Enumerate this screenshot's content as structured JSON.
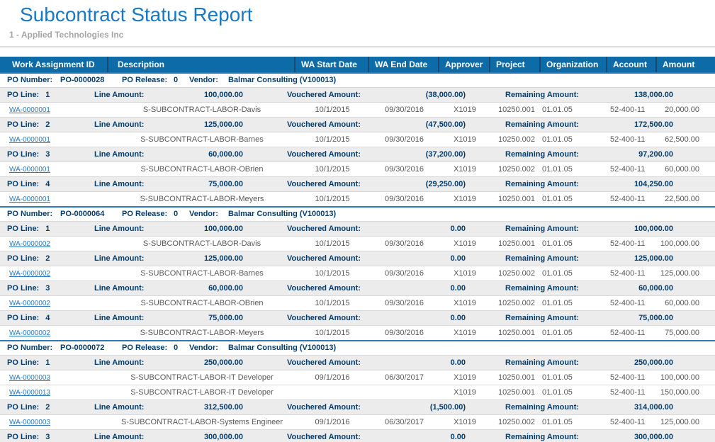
{
  "report": {
    "title": "Subcontract Status Report",
    "subtitle": "1 - Applied Technologies Inc"
  },
  "colors": {
    "title_blue": "#1b78c2",
    "header_bg": "#0d6ba8",
    "header_divider": "#17496f",
    "navy_text": "#043d6d",
    "detail_gray": "#58585a",
    "link_blue": "#2b79b9",
    "alt_row_bg": "#ececec",
    "section_border_blue": "#2d7ab8"
  },
  "table": {
    "columns": [
      "Work Assignment ID",
      "Description",
      "WA Start Date",
      "WA End Date",
      "Approver",
      "Project",
      "Organization",
      "Account",
      "Amount"
    ],
    "labels": {
      "po_number": "PO Number:",
      "po_release": "PO Release:",
      "vendor": "Vendor:",
      "po_line": "PO Line:",
      "line_amount": "Line Amount:",
      "vouchered_amount": "Vouchered Amount:",
      "remaining_amount": "Remaining Amount:"
    },
    "sections": [
      {
        "po_number": "PO-0000028",
        "po_release": "0",
        "vendor": "Balmar Consulting (V100013)",
        "lines": [
          {
            "line_no": "1",
            "line_amount": "100,000.00",
            "vouchered": "(38,000.00)",
            "remaining": "138,000.00",
            "assignments": [
              {
                "wa_id": "WA-0000001",
                "description": "S-SUBCONTRACT-LABOR-Davis",
                "start": "10/1/2015",
                "end": "09/30/2016",
                "approver": "X1019",
                "project": "10250.001",
                "organization": "01.01.05",
                "account": "52-400-11",
                "amount": "20,000.00"
              }
            ]
          },
          {
            "line_no": "2",
            "line_amount": "125,000.00",
            "vouchered": "(47,500.00)",
            "remaining": "172,500.00",
            "assignments": [
              {
                "wa_id": "WA-0000001",
                "description": "S-SUBCONTRACT-LABOR-Barnes",
                "start": "10/1/2015",
                "end": "09/30/2016",
                "approver": "X1019",
                "project": "10250.002",
                "organization": "01.01.05",
                "account": "52-400-11",
                "amount": "62,500.00"
              }
            ]
          },
          {
            "line_no": "3",
            "line_amount": "60,000.00",
            "vouchered": "(37,200.00)",
            "remaining": "97,200.00",
            "assignments": [
              {
                "wa_id": "WA-0000001",
                "description": "S-SUBCONTRACT-LABOR-OBrien",
                "start": "10/1/2015",
                "end": "09/30/2016",
                "approver": "X1019",
                "project": "10250.002",
                "organization": "01.01.05",
                "account": "52-400-11",
                "amount": "60,000.00"
              }
            ]
          },
          {
            "line_no": "4",
            "line_amount": "75,000.00",
            "vouchered": "(29,250.00)",
            "remaining": "104,250.00",
            "assignments": [
              {
                "wa_id": "WA-0000001",
                "description": "S-SUBCONTRACT-LABOR-Meyers",
                "start": "10/1/2015",
                "end": "09/30/2016",
                "approver": "X1019",
                "project": "10250.001",
                "organization": "01.01.05",
                "account": "52-400-11",
                "amount": "22,500.00"
              }
            ]
          }
        ]
      },
      {
        "po_number": "PO-0000064",
        "po_release": "0",
        "vendor": "Balmar Consulting (V100013)",
        "lines": [
          {
            "line_no": "1",
            "line_amount": "100,000.00",
            "vouchered": "0.00",
            "remaining": "100,000.00",
            "assignments": [
              {
                "wa_id": "WA-0000002",
                "description": "S-SUBCONTRACT-LABOR-Davis",
                "start": "10/1/2015",
                "end": "09/30/2016",
                "approver": "X1019",
                "project": "10250.001",
                "organization": "01.01.05",
                "account": "52-400-11",
                "amount": "100,000.00"
              }
            ]
          },
          {
            "line_no": "2",
            "line_amount": "125,000.00",
            "vouchered": "0.00",
            "remaining": "125,000.00",
            "assignments": [
              {
                "wa_id": "WA-0000002",
                "description": "S-SUBCONTRACT-LABOR-Barnes",
                "start": "10/1/2015",
                "end": "09/30/2016",
                "approver": "X1019",
                "project": "10250.002",
                "organization": "01.01.05",
                "account": "52-400-11",
                "amount": "125,000.00"
              }
            ]
          },
          {
            "line_no": "3",
            "line_amount": "60,000.00",
            "vouchered": "0.00",
            "remaining": "60,000.00",
            "assignments": [
              {
                "wa_id": "WA-0000002",
                "description": "S-SUBCONTRACT-LABOR-OBrien",
                "start": "10/1/2015",
                "end": "09/30/2016",
                "approver": "X1019",
                "project": "10250.002",
                "organization": "01.01.05",
                "account": "52-400-11",
                "amount": "60,000.00"
              }
            ]
          },
          {
            "line_no": "4",
            "line_amount": "75,000.00",
            "vouchered": "0.00",
            "remaining": "75,000.00",
            "assignments": [
              {
                "wa_id": "WA-0000002",
                "description": "S-SUBCONTRACT-LABOR-Meyers",
                "start": "10/1/2015",
                "end": "09/30/2016",
                "approver": "X1019",
                "project": "10250.001",
                "organization": "01.01.05",
                "account": "52-400-11",
                "amount": "75,000.00"
              }
            ]
          }
        ]
      },
      {
        "po_number": "PO-0000072",
        "po_release": "0",
        "vendor": "Balmar Consulting (V100013)",
        "lines": [
          {
            "line_no": "1",
            "line_amount": "250,000.00",
            "vouchered": "0.00",
            "remaining": "250,000.00",
            "assignments": [
              {
                "wa_id": "WA-0000003",
                "description": "S-SUBCONTRACT-LABOR-IT Developer",
                "start": "09/1/2016",
                "end": "06/30/2017",
                "approver": "X1019",
                "project": "10250.001",
                "organization": "01.01.05",
                "account": "52-400-11",
                "amount": "100,000.00"
              },
              {
                "wa_id": "WA-0000013",
                "description": "S-SUBCONTRACT-LABOR-IT Developer",
                "start": "",
                "end": "",
                "approver": "X1019",
                "project": "10250.001",
                "organization": "01.01.05",
                "account": "52-400-11",
                "amount": "150,000.00"
              }
            ]
          },
          {
            "line_no": "2",
            "line_amount": "312,500.00",
            "vouchered": "(1,500.00)",
            "remaining": "314,000.00",
            "assignments": [
              {
                "wa_id": "WA-0000003",
                "description": "S-SUBCONTRACT-LABOR-Systems Engineer",
                "start": "09/1/2016",
                "end": "06/30/2017",
                "approver": "X1019",
                "project": "10250.002",
                "organization": "01.01.05",
                "account": "52-400-11",
                "amount": "125,000.00"
              }
            ]
          },
          {
            "line_no": "3",
            "line_amount": "300,000.00",
            "vouchered": "0.00",
            "remaining": "300,000.00",
            "assignments": []
          }
        ]
      }
    ]
  }
}
